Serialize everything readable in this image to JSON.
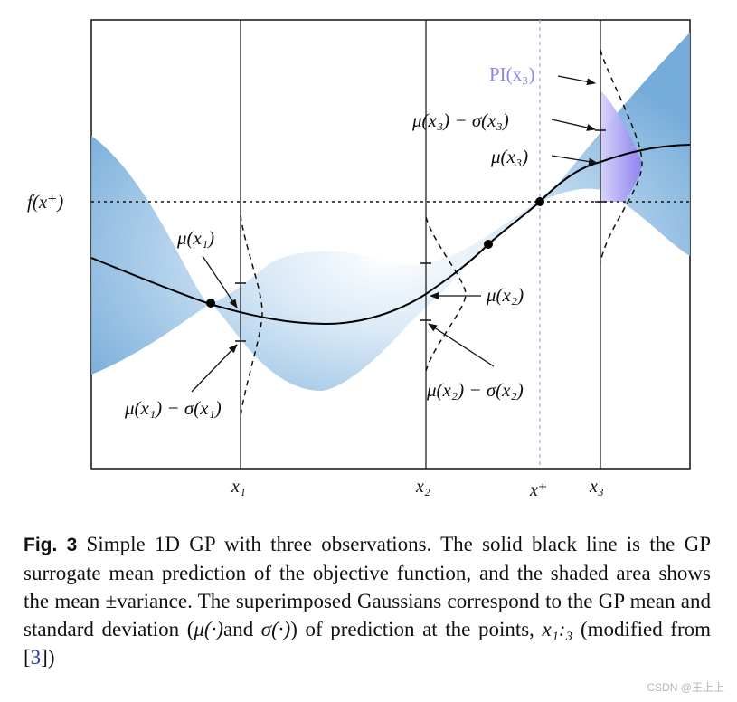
{
  "figure": {
    "labels": {
      "f_x_plus": "f(x⁺)",
      "mu_x1": "μ(x₁)",
      "mu_x1_minus_sigma": "μ(x₁) − σ(x₁)",
      "mu_x2": "μ(x₂)",
      "mu_x2_minus_sigma": "μ(x₂) − σ(x₂)",
      "mu_x3": "μ(x₃)",
      "mu_x3_minus_sigma": "μ(x₃) − σ(x₃)",
      "pi_x3": "PI(x₃)"
    },
    "x_ticks": {
      "x1": "x₁",
      "x2": "x₂",
      "x_plus": "x⁺",
      "x3": "x₃"
    },
    "colors": {
      "band": "#7fb2dc",
      "band_light": "#eaf3fb",
      "pi_region": "#8f7ff0",
      "x_plus_line": "#a8a8ee",
      "mean_line": "#000000"
    }
  },
  "caption": {
    "label": "Fig. 3",
    "text_1": "Simple 1D GP with three observations. The solid black line is the GP surrogate mean prediction of the objective function, and the shaded area shows the mean ±variance. The superimposed Gaussians correspond to the GP mean and standard deviation (",
    "mu_cdot": "μ(·)",
    "text_and": "and ",
    "sigma_cdot": "σ(·)",
    "text_2": ") of prediction at the points, ",
    "points_var": "x₁:₃",
    "text_3": " (modified from [",
    "ref": "3",
    "text_4": "])"
  },
  "watermark": "CSDN @王上上"
}
